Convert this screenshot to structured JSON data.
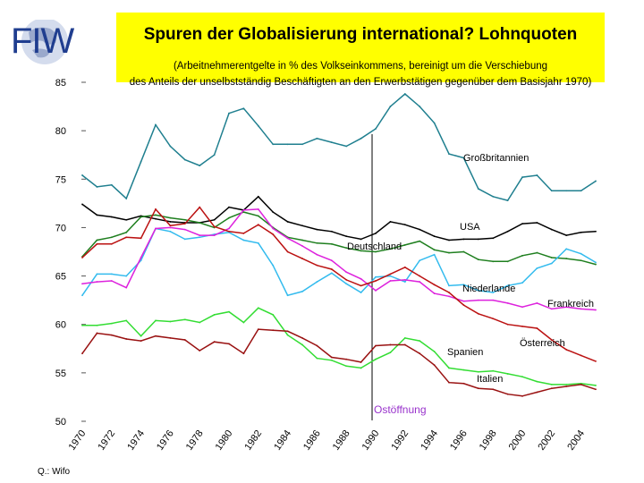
{
  "header": {
    "logo_text": "FIW",
    "title": "Spuren der Globalisierung international? Lohnquoten",
    "subtitle_line1": "(Arbeitnehmerentgelte in % des Volkseinkommens, bereinigt um die Verschiebung",
    "subtitle_line2": "des Anteils der unselbstständig Beschäftigten an den Erwerbstätigen gegenüber dem Basisjahr 1970)"
  },
  "source": "Q.: Wifo",
  "chart_data": {
    "type": "line",
    "title": "Spuren der Globalisierung international? Lohnquoten",
    "x": [
      1970,
      1971,
      1972,
      1973,
      1974,
      1975,
      1976,
      1977,
      1978,
      1979,
      1980,
      1981,
      1982,
      1983,
      1984,
      1985,
      1986,
      1987,
      1988,
      1989,
      1990,
      1991,
      1992,
      1993,
      1994,
      1995,
      1996,
      1997,
      1998,
      1999,
      2000,
      2001,
      2002,
      2003,
      2004,
      2005
    ],
    "xticks": [
      1970,
      1972,
      1974,
      1976,
      1978,
      1980,
      1982,
      1984,
      1986,
      1988,
      1990,
      1992,
      1994,
      1996,
      1998,
      2000,
      2002,
      2004
    ],
    "xtick_labels": [
      "1970",
      "1972",
      "1974",
      "1976",
      "1978",
      "1980",
      "1982",
      "1984",
      "1986",
      "1988",
      "1990",
      "1992",
      "1994",
      "1996",
      "1998",
      "2000",
      "2002",
      "2004"
    ],
    "ylim": [
      50,
      85
    ],
    "yticks": [
      50,
      55,
      60,
      65,
      70,
      75,
      80,
      85
    ],
    "ytick_labels": [
      "50",
      "55",
      "60",
      "65",
      "70",
      "75",
      "80",
      "85"
    ],
    "grid": false,
    "legend": "inline labels",
    "series": [
      {
        "name": "Großbritannien",
        "color": "#1f7f8f",
        "values": [
          75.4,
          74.2,
          74.4,
          73.0,
          76.8,
          80.6,
          78.4,
          77.0,
          76.4,
          77.5,
          81.8,
          82.3,
          80.5,
          78.6,
          78.6,
          78.6,
          79.2,
          78.8,
          78.4,
          79.2,
          80.2,
          82.5,
          83.8,
          82.5,
          80.8,
          77.6,
          77.2,
          74.0,
          73.2,
          72.8,
          75.2,
          75.4,
          73.8,
          73.8,
          73.8,
          74.8
        ]
      },
      {
        "name": "USA",
        "color": "#000000",
        "values": [
          72.4,
          71.3,
          71.1,
          70.8,
          71.2,
          70.9,
          70.6,
          70.5,
          70.5,
          70.8,
          72.1,
          71.8,
          73.2,
          71.6,
          70.6,
          70.2,
          69.8,
          69.6,
          69.1,
          68.8,
          69.4,
          70.6,
          70.3,
          69.8,
          69.1,
          68.7,
          68.8,
          68.8,
          68.9,
          69.6,
          70.4,
          70.5,
          69.8,
          69.2,
          69.5,
          69.6
        ]
      },
      {
        "name": "Deutschland",
        "color": "#1f7f1f",
        "values": [
          67.0,
          68.7,
          69.0,
          69.5,
          71.1,
          71.3,
          71.0,
          70.8,
          70.5,
          70.0,
          71.0,
          71.6,
          71.2,
          70.0,
          69.0,
          68.7,
          68.4,
          68.3,
          67.9,
          67.6,
          67.5,
          67.8,
          68.2,
          68.6,
          67.7,
          67.4,
          67.5,
          66.7,
          66.5,
          66.5,
          67.1,
          67.4,
          66.9,
          66.8,
          66.6,
          66.2
        ]
      },
      {
        "name": "Niederlande",
        "color": "#33bbee",
        "values": [
          63.0,
          65.2,
          65.2,
          65.0,
          66.6,
          69.9,
          69.6,
          68.8,
          69.0,
          69.3,
          69.5,
          68.7,
          68.4,
          66.1,
          63.0,
          63.4,
          64.4,
          65.3,
          64.2,
          63.3,
          64.9,
          65.0,
          64.4,
          66.6,
          67.2,
          64.0,
          64.1,
          63.5,
          63.3,
          64.0,
          64.3,
          65.8,
          66.3,
          67.8,
          67.3,
          66.4
        ]
      },
      {
        "name": "Frankreich",
        "color": "#dd22dd",
        "values": [
          64.2,
          64.4,
          64.5,
          63.8,
          66.9,
          69.9,
          70.0,
          69.8,
          69.2,
          69.2,
          69.9,
          71.8,
          71.9,
          69.9,
          68.9,
          68.1,
          67.2,
          66.6,
          65.4,
          64.7,
          63.5,
          64.5,
          64.6,
          64.4,
          63.2,
          62.9,
          62.4,
          62.5,
          62.5,
          62.2,
          61.8,
          62.2,
          61.6,
          61.8,
          61.6,
          61.5
        ]
      },
      {
        "name": "Österreich",
        "color": "#bb1111",
        "values": [
          66.9,
          68.3,
          68.3,
          69.0,
          68.9,
          71.9,
          70.2,
          70.4,
          72.1,
          70.1,
          69.6,
          69.4,
          70.3,
          69.3,
          67.5,
          66.8,
          66.1,
          65.7,
          64.6,
          64.0,
          64.5,
          65.2,
          65.9,
          65.0,
          64.1,
          63.3,
          62.0,
          61.1,
          60.6,
          60.0,
          59.8,
          59.6,
          58.4,
          57.4,
          56.8,
          56.2
        ]
      },
      {
        "name": "Spanien",
        "color": "#33dd33",
        "values": [
          59.9,
          59.9,
          60.1,
          60.4,
          58.8,
          60.4,
          60.3,
          60.5,
          60.2,
          61.0,
          61.3,
          60.2,
          61.7,
          61.0,
          58.9,
          57.9,
          56.5,
          56.3,
          55.7,
          55.5,
          56.4,
          57.1,
          58.6,
          58.3,
          57.2,
          55.5,
          55.3,
          55.1,
          55.2,
          54.9,
          54.6,
          54.1,
          53.8,
          53.8,
          53.9,
          53.7
        ]
      },
      {
        "name": "Italien",
        "color": "#991111",
        "values": [
          57.0,
          59.1,
          58.9,
          58.5,
          58.3,
          58.8,
          58.6,
          58.4,
          57.3,
          58.2,
          58.0,
          57.0,
          59.5,
          59.4,
          59.3,
          58.6,
          57.8,
          56.6,
          56.4,
          56.1,
          57.8,
          57.9,
          57.9,
          57.0,
          55.8,
          54.0,
          53.9,
          53.4,
          53.3,
          52.8,
          52.6,
          53.0,
          53.4,
          53.6,
          53.8,
          53.3
        ]
      }
    ],
    "annotations": [
      {
        "text": "Ostöffnung",
        "x": 1990,
        "color": "#9933cc"
      }
    ]
  }
}
